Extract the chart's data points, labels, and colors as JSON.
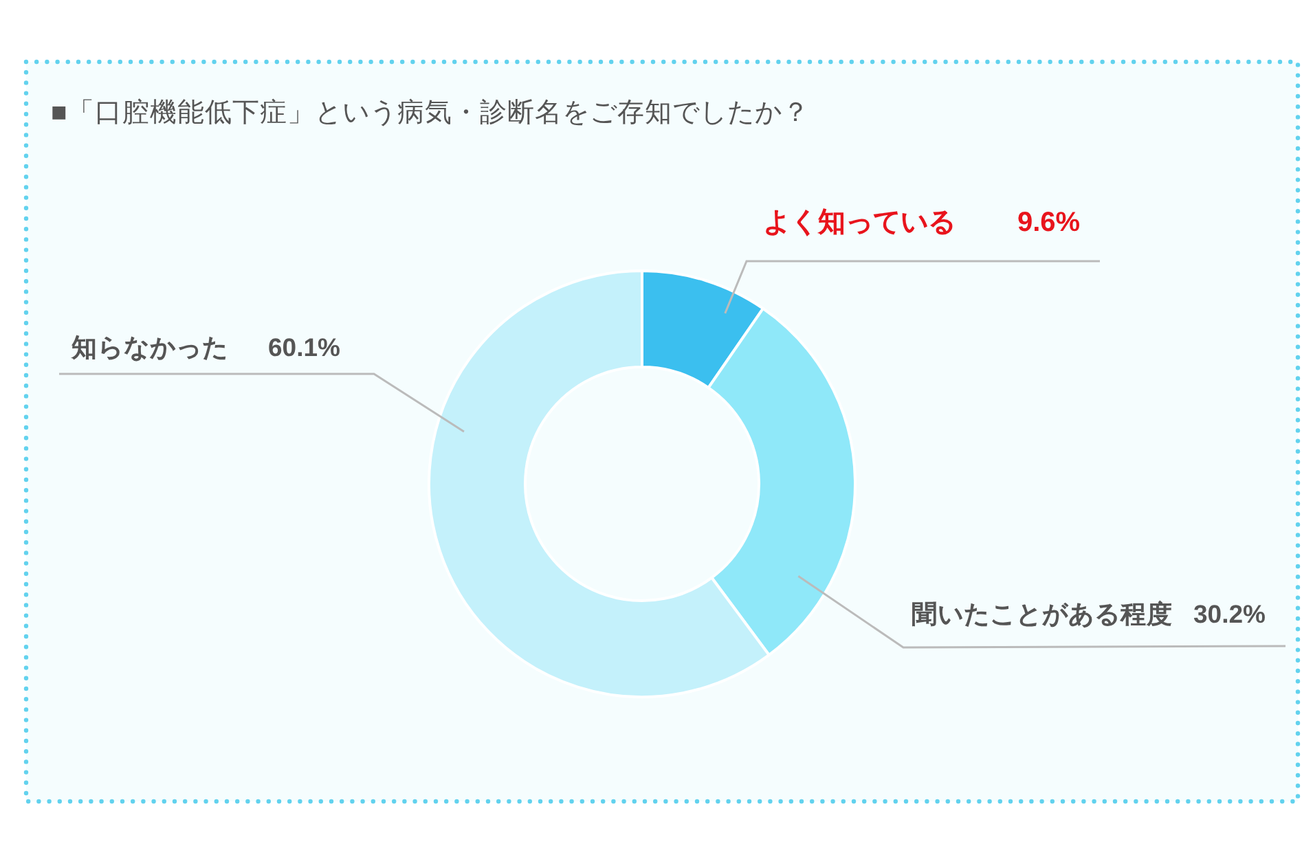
{
  "chart_data": {
    "type": "donut",
    "title": "■「口腔機能低下症」という病気・診断名をご存知でしたか？",
    "categories": [
      "よく知っている",
      "聞いたことがある程度",
      "知らなかった"
    ],
    "values": [
      9.6,
      30.2,
      60.1
    ],
    "colors": [
      "#3bbfef",
      "#8fe8f9",
      "#c4f1fb"
    ],
    "value_labels": [
      "9.6%",
      "30.2%",
      "60.1%"
    ]
  }
}
